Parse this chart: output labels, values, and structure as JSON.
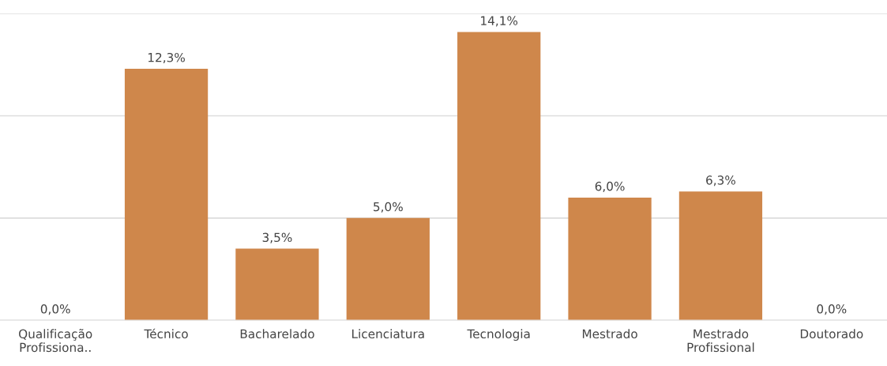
{
  "chart_data": {
    "type": "bar",
    "categories": [
      "Qualificação\nProfissiona..",
      "Técnico",
      "Bacharelado",
      "Licenciatura",
      "Tecnologia",
      "Mestrado",
      "Mestrado\nProfissional",
      "Doutorado"
    ],
    "values": [
      0,
      12.3,
      3.5,
      5.0,
      14.1,
      6.0,
      6.3,
      0
    ],
    "value_labels": [
      "0,0%",
      "12,3%",
      "3,5%",
      "5,0%",
      "14,1%",
      "6,0%",
      "6,3%",
      "0,0%"
    ],
    "color": "#cf874b",
    "ylim": [
      0,
      15
    ],
    "yticks": [
      {
        "value": 0,
        "label": null
      },
      {
        "value": 5,
        "label": null
      },
      {
        "value": 10,
        "label": null
      },
      {
        "value": 15,
        "label": null
      }
    ],
    "grid": "y",
    "tick_labels": "x"
  }
}
